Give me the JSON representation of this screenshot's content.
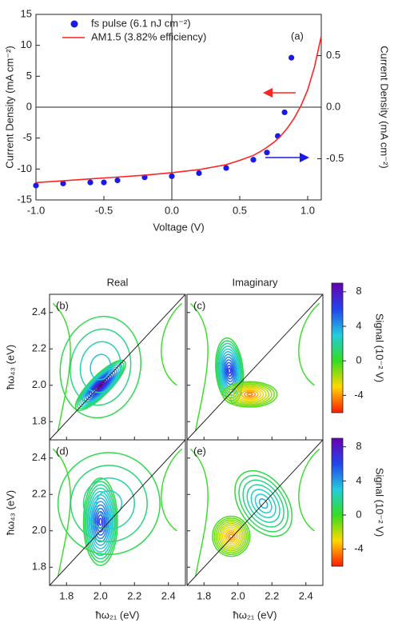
{
  "chart_data": [
    {
      "type": "line",
      "annotation": "(a)",
      "x_label": "Voltage (V)",
      "y_label": "Current Density (mA cm⁻²)",
      "y2_label": "Current Density (mA cm⁻²)",
      "xlim": [
        -1.0,
        1.1
      ],
      "xticks": [
        {
          "value": -1,
          "label": "-1.0"
        },
        {
          "value": -0.5,
          "label": "-0.5"
        },
        {
          "value": 0,
          "label": "0.0"
        },
        {
          "value": 0.5,
          "label": "0.5"
        },
        {
          "value": 1,
          "label": "1.0"
        }
      ],
      "ylim": [
        -15,
        15
      ],
      "yticks": [
        -15,
        -10,
        -5,
        0,
        5,
        10,
        15
      ],
      "y2lim": [
        -0.9,
        0.9
      ],
      "y2ticks": [
        {
          "value": -0.5,
          "label": "-0.5"
        },
        {
          "value": 0,
          "label": "0.0"
        },
        {
          "value": 0.5,
          "label": "0.5"
        }
      ],
      "legend": "upper left",
      "series": [
        {
          "name": "fs pulse (6.1 nJ cm⁻²)",
          "color": "#1a1ae6",
          "marker": "circle",
          "axis": "y2",
          "x": [
            -1.0,
            -0.8,
            -0.6,
            -0.5,
            -0.4,
            -0.2,
            0,
            0.2,
            0.4,
            0.6,
            0.7,
            0.78,
            0.83,
            0.88
          ],
          "values": [
            -0.76,
            -0.74,
            -0.73,
            -0.73,
            -0.71,
            -0.68,
            -0.67,
            -0.64,
            -0.59,
            -0.51,
            -0.44,
            -0.28,
            -0.05,
            0.48
          ]
        },
        {
          "name": "AM1.5 (3.82% efficiency)",
          "color": "#ff2424",
          "x": [
            -1.0,
            -0.8,
            -0.6,
            -0.4,
            -0.2,
            0,
            0.2,
            0.3,
            0.4,
            0.5,
            0.6,
            0.65,
            0.7,
            0.75,
            0.8,
            0.85,
            0.9,
            0.95,
            1.0,
            1.05,
            1.1
          ],
          "values": [
            -12.2,
            -11.9,
            -11.6,
            -11.3,
            -11.0,
            -10.6,
            -10.1,
            -9.7,
            -9.3,
            -8.6,
            -7.8,
            -7.2,
            -6.5,
            -5.7,
            -4.7,
            -3.4,
            -1.8,
            0.2,
            2.8,
            6.5,
            11.5
          ]
        }
      ]
    },
    {
      "type": "contour",
      "x_label": "ħω₂₁ (eV)",
      "y_label": "ħω₄₃ (eV)",
      "colorbar_label": "Signal (10⁻² V)",
      "xlim": [
        1.7,
        2.5
      ],
      "ylim": [
        1.7,
        2.5
      ],
      "xticks": [
        1.8,
        {
          "value": 2,
          "label": "2.0"
        },
        2.2,
        2.4
      ],
      "yticks": [
        1.8,
        {
          "value": 2,
          "label": "2.0"
        },
        2.2,
        2.4
      ],
      "clim": [
        -6,
        9
      ],
      "cticks": [
        -4,
        0,
        4,
        8
      ],
      "columns": [
        "Real",
        "Imaginary"
      ],
      "panels": [
        "(b)",
        "(c)",
        "(d)",
        "(e)"
      ]
    }
  ]
}
